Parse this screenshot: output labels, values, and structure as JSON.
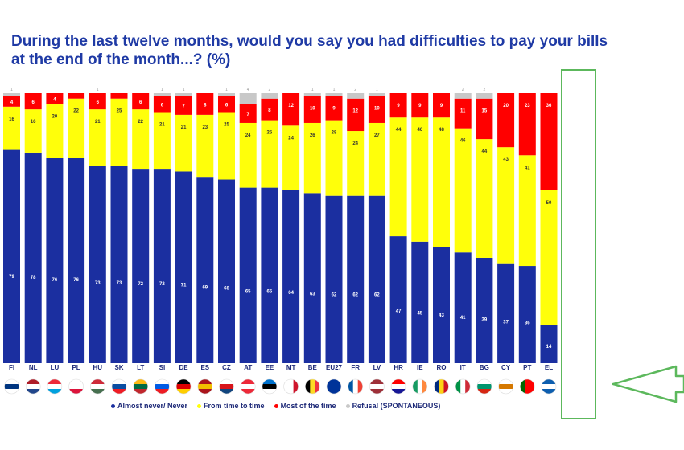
{
  "title": "During the last twelve months, would you say you had difficulties to pay your bills at the end of the month...? (%)",
  "legend": [
    {
      "label": "Almost never/ Never",
      "color": "#1b2fa0"
    },
    {
      "label": "From time to time",
      "color": "#ffff0a"
    },
    {
      "label": "Most of the time",
      "color": "#ff0000"
    },
    {
      "label": "Refusal (SPONTANEOUS)",
      "color": "#c8c8c8"
    }
  ],
  "chart_data": {
    "type": "bar",
    "stacked": true,
    "percent_scale": [
      0,
      100
    ],
    "grid": false,
    "legend_position": "bottom",
    "categories": [
      "FI",
      "NL",
      "LU",
      "PL",
      "HU",
      "SK",
      "LT",
      "SI",
      "DE",
      "ES",
      "CZ",
      "AT",
      "EE",
      "MT",
      "BE",
      "EU27",
      "FR",
      "LV",
      "HR",
      "IE",
      "RO",
      "IT",
      "BG",
      "CY",
      "PT",
      "EL"
    ],
    "series": [
      {
        "name": "Almost never/ Never",
        "color": "#1b2fa0",
        "values": [
          79,
          78,
          76,
          76,
          73,
          73,
          72,
          72,
          71,
          69,
          68,
          65,
          65,
          64,
          63,
          62,
          62,
          62,
          47,
          45,
          43,
          41,
          39,
          37,
          36,
          14
        ]
      },
      {
        "name": "From time to time",
        "color": "#ffff0a",
        "values": [
          16,
          16,
          20,
          22,
          21,
          25,
          22,
          21,
          21,
          23,
          25,
          24,
          25,
          24,
          26,
          28,
          24,
          27,
          44,
          46,
          48,
          46,
          44,
          43,
          41,
          50
        ]
      },
      {
        "name": "Most of the time",
        "color": "#ff0000",
        "values": [
          4,
          6,
          4,
          2,
          6,
          2,
          6,
          6,
          7,
          8,
          6,
          7,
          8,
          12,
          10,
          9,
          12,
          10,
          9,
          9,
          9,
          11,
          15,
          20,
          23,
          36
        ]
      },
      {
        "name": "Refusal (SPONTANEOUS)",
        "color": "#c8c8c8",
        "values": [
          1,
          0,
          0,
          0,
          0,
          0,
          0,
          1,
          1,
          0,
          1,
          4,
          2,
          0,
          1,
          1,
          2,
          1,
          0,
          0,
          0,
          2,
          2,
          0,
          0,
          0
        ]
      }
    ],
    "top_labels": [
      "1",
      "",
      "",
      "",
      "1",
      "",
      "",
      "1",
      "1",
      "",
      "1",
      "4",
      "2",
      "",
      "1",
      "1",
      "2",
      "1",
      "",
      "",
      "",
      "2",
      "2",
      "",
      "",
      ""
    ],
    "segment_labels": [
      [
        "79",
        "16",
        "4"
      ],
      [
        "78",
        "16",
        "6"
      ],
      [
        "76",
        "20",
        "4"
      ],
      [
        "76",
        "22",
        ""
      ],
      [
        "73",
        "21",
        "6"
      ],
      [
        "73",
        "25",
        ""
      ],
      [
        "72",
        "22",
        "6"
      ],
      [
        "72",
        "21",
        "6"
      ],
      [
        "71",
        "21",
        "7"
      ],
      [
        "69",
        "23",
        "8"
      ],
      [
        "68",
        "25",
        "6"
      ],
      [
        "65",
        "24",
        "7"
      ],
      [
        "65",
        "25",
        "8"
      ],
      [
        "64",
        "24",
        "12"
      ],
      [
        "63",
        "26",
        "10"
      ],
      [
        "62",
        "28",
        "9"
      ],
      [
        "62",
        "24",
        "12"
      ],
      [
        "62",
        "27",
        "10"
      ],
      [
        "47",
        "44",
        "9"
      ],
      [
        "45",
        "46",
        "9"
      ],
      [
        "43",
        "48",
        "9"
      ],
      [
        "41",
        "46",
        "11"
      ],
      [
        "39",
        "44",
        "15"
      ],
      [
        "37",
        "43",
        "20"
      ],
      [
        "36",
        "41",
        "23"
      ],
      [
        "14",
        "50",
        "36"
      ]
    ],
    "highlighted_category": "EL"
  }
}
